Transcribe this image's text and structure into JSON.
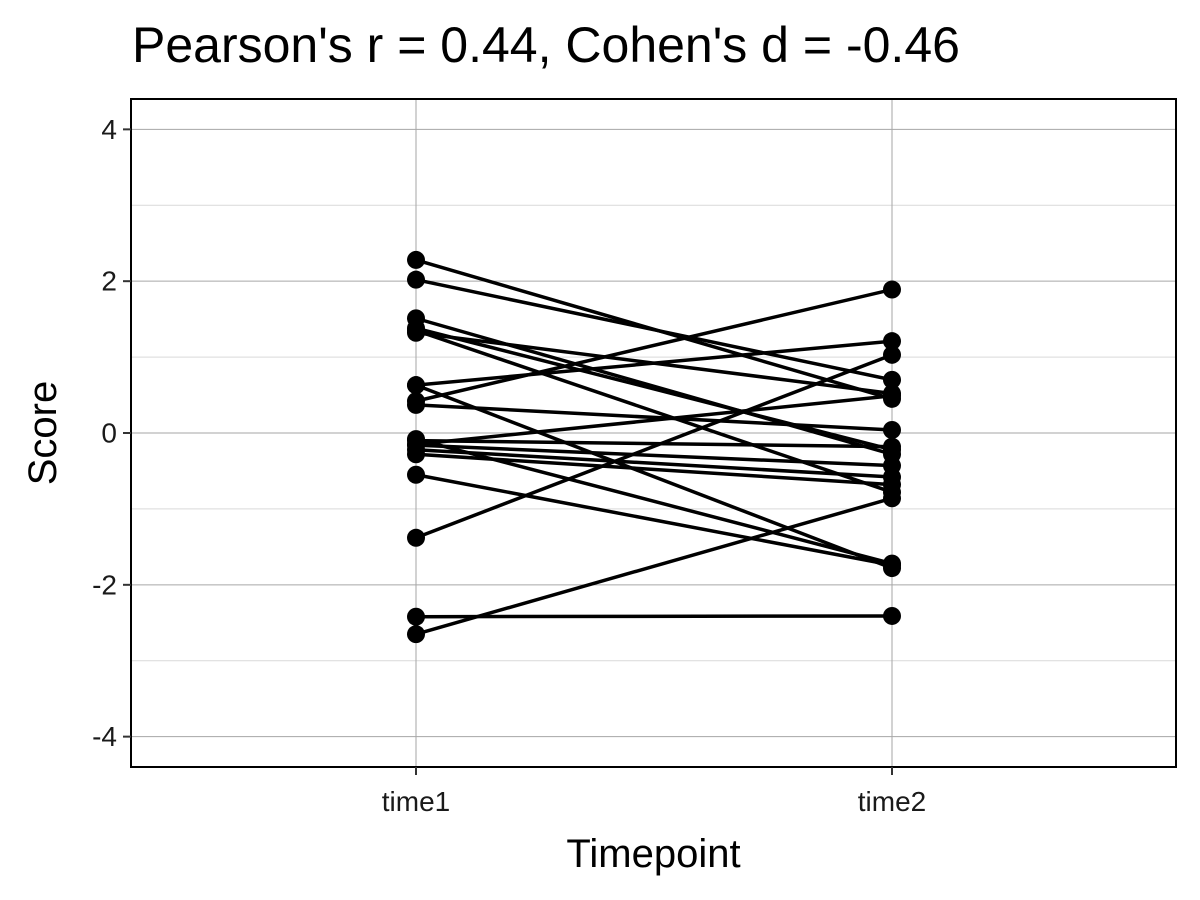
{
  "chart_data": {
    "type": "line",
    "title": "Pearson's r = 0.44, Cohen's d = -0.46",
    "xlabel": "Timepoint",
    "ylabel": "Score",
    "categories": [
      "time1",
      "time2"
    ],
    "ylim": [
      -4.4,
      4.4
    ],
    "y_ticks": [
      -4,
      -2,
      0,
      2,
      4
    ],
    "y_tick_labels": [
      "-4",
      "-2",
      "0",
      "2",
      "4"
    ],
    "grid": true,
    "colors": {
      "line": "#000000",
      "point": "#000000",
      "grid_major": "#a6a6a6",
      "grid_minor": "#d9d9d9",
      "panel_border": "#000000"
    },
    "pairs": [
      {
        "time1": 2.28,
        "time2": 0.45
      },
      {
        "time1": 2.02,
        "time2": 0.7
      },
      {
        "time1": 1.51,
        "time2": -0.28
      },
      {
        "time1": 1.38,
        "time2": -0.22
      },
      {
        "time1": 1.32,
        "time2": 0.52
      },
      {
        "time1": 0.63,
        "time2": 1.21
      },
      {
        "time1": 0.63,
        "time2": -1.78
      },
      {
        "time1": 0.42,
        "time2": 1.89
      },
      {
        "time1": 0.37,
        "time2": 0.04
      },
      {
        "time1": -0.08,
        "time2": -1.72
      },
      {
        "time1": -0.1,
        "time2": -0.18
      },
      {
        "time1": -0.15,
        "time2": 0.49
      },
      {
        "time1": -0.16,
        "time2": -0.43
      },
      {
        "time1": -0.22,
        "time2": -0.58
      },
      {
        "time1": -0.28,
        "time2": -0.68
      },
      {
        "time1": -0.55,
        "time2": -1.74
      },
      {
        "time1": -1.38,
        "time2": 1.03
      },
      {
        "time1": -2.42,
        "time2": -2.41
      },
      {
        "time1": -2.65,
        "time2": -0.86
      },
      {
        "time1": 1.35,
        "time2": -0.78
      }
    ]
  }
}
